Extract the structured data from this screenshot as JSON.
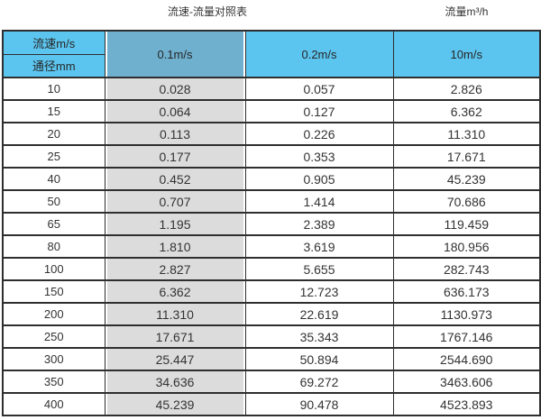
{
  "page": {
    "caption_left": "流速-流量对照表",
    "caption_right": "流量m³/h"
  },
  "colors": {
    "header_blue": "#5cc5ef",
    "header_steel_blue": "#6fb0cf",
    "highlight_column_gray": "#dcdcdc",
    "border": "#2e2e2e",
    "text": "#333333",
    "background": "#ffffff"
  },
  "table": {
    "corner_top_label": "流速m/s",
    "corner_bottom_label": "通径mm",
    "velocity_headers": [
      "0.1m/s",
      "0.2m/s",
      "10m/s"
    ],
    "rows": [
      [
        "10",
        "0.028",
        "0.057",
        "2.826"
      ],
      [
        "15",
        "0.064",
        "0.127",
        "6.362"
      ],
      [
        "20",
        "0.113",
        "0.226",
        "11.310"
      ],
      [
        "25",
        "0.177",
        "0.353",
        "17.671"
      ],
      [
        "40",
        "0.452",
        "0.905",
        "45.239"
      ],
      [
        "50",
        "0.707",
        "1.414",
        "70.686"
      ],
      [
        "65",
        "1.195",
        "2.389",
        "119.459"
      ],
      [
        "80",
        "1.810",
        "3.619",
        "180.956"
      ],
      [
        "100",
        "2.827",
        "5.655",
        "282.743"
      ],
      [
        "150",
        "6.362",
        "12.723",
        "636.173"
      ],
      [
        "200",
        "11.310",
        "22.619",
        "1130.973"
      ],
      [
        "250",
        "17.671",
        "35.343",
        "1767.146"
      ],
      [
        "300",
        "25.447",
        "50.894",
        "2544.690"
      ],
      [
        "350",
        "34.636",
        "69.272",
        "3463.606"
      ],
      [
        "400",
        "45.239",
        "90.478",
        "4523.893"
      ]
    ]
  },
  "chart_data": {
    "type": "table",
    "title": "流速-流量对照表",
    "unit_label": "流量m³/h",
    "columns": [
      "通径mm",
      "0.1m/s",
      "0.2m/s",
      "10m/s"
    ],
    "row_header_label": "流速m/s",
    "rows": [
      [
        10,
        0.028,
        0.057,
        2.826
      ],
      [
        15,
        0.064,
        0.127,
        6.362
      ],
      [
        20,
        0.113,
        0.226,
        11.31
      ],
      [
        25,
        0.177,
        0.353,
        17.671
      ],
      [
        40,
        0.452,
        0.905,
        45.239
      ],
      [
        50,
        0.707,
        1.414,
        70.686
      ],
      [
        65,
        1.195,
        2.389,
        119.459
      ],
      [
        80,
        1.81,
        3.619,
        180.956
      ],
      [
        100,
        2.827,
        5.655,
        282.743
      ],
      [
        150,
        6.362,
        12.723,
        636.173
      ],
      [
        200,
        11.31,
        22.619,
        1130.973
      ],
      [
        250,
        17.671,
        35.343,
        1767.146
      ],
      [
        300,
        25.447,
        50.894,
        2544.69
      ],
      [
        350,
        34.636,
        69.272,
        3463.606
      ],
      [
        400,
        45.239,
        90.478,
        4523.893
      ]
    ]
  }
}
